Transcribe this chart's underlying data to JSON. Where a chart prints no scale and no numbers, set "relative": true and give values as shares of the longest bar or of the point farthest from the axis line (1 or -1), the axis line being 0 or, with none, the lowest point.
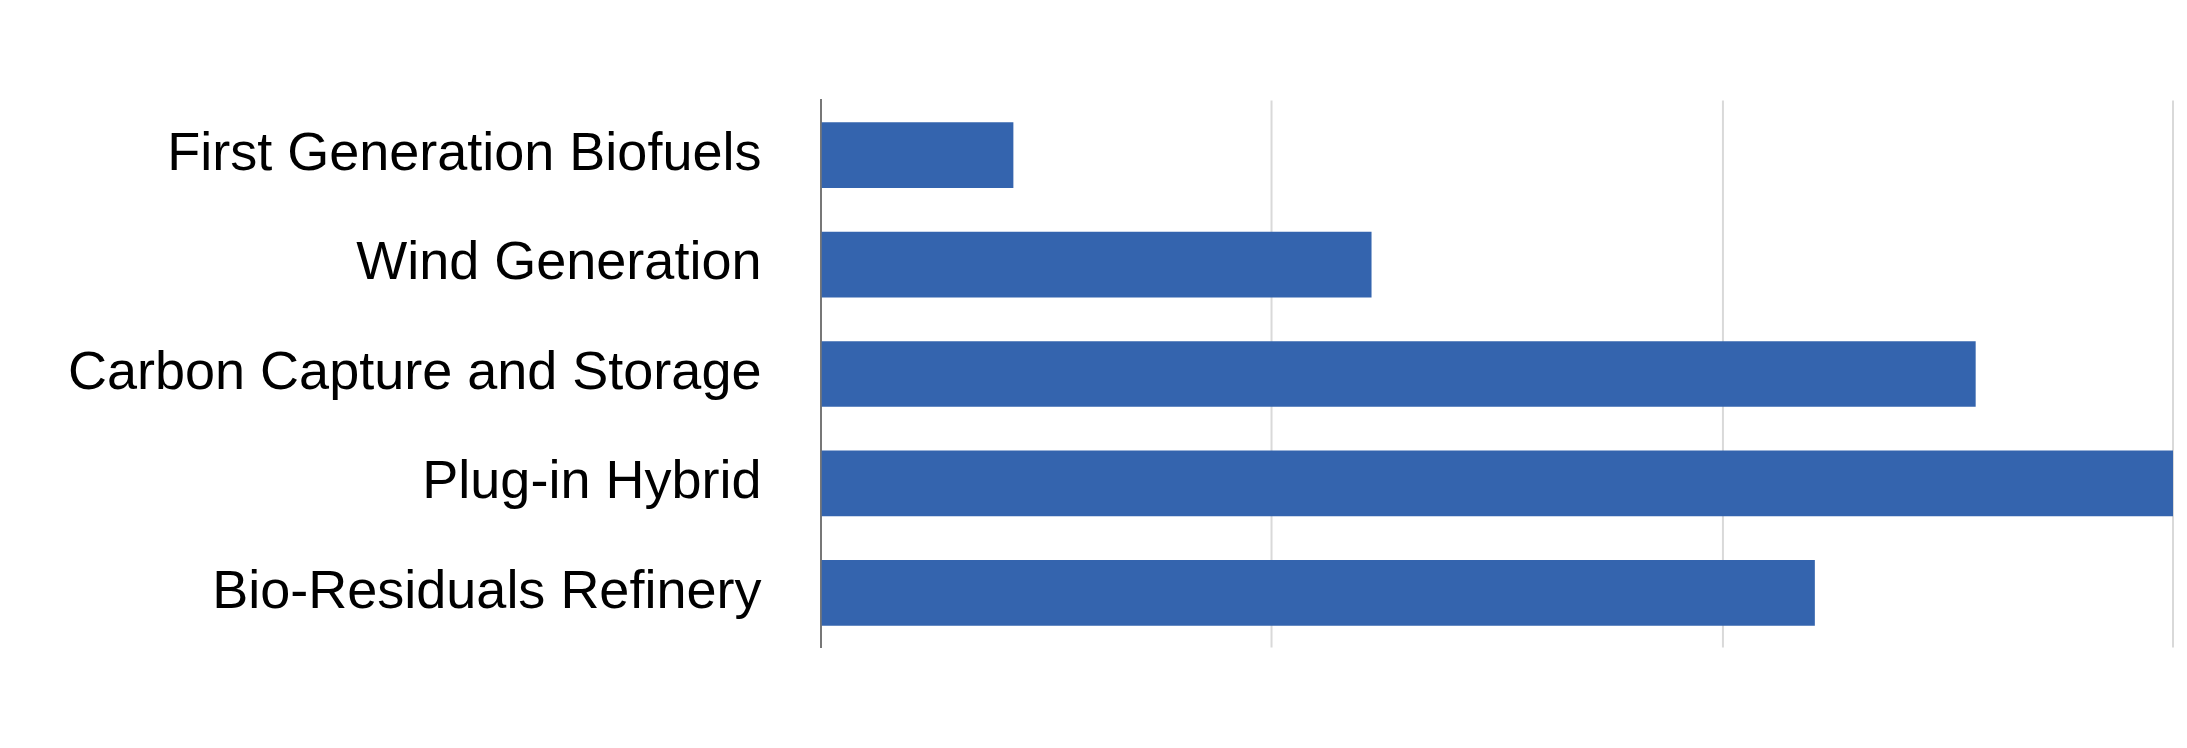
{
  "chart_data": {
    "type": "bar",
    "orientation": "horizontal",
    "relative": true,
    "categories": [
      "First Generation Biofuels",
      "Wind Generation",
      "Carbon Capture and Storage",
      "Plug-in Hybrid",
      "Bio-Residuals Refinery"
    ],
    "values": [
      0.142,
      0.407,
      0.854,
      1,
      0.735
    ],
    "color": "#3464ae",
    "ref_lines": [
      {
        "axis": "x",
        "value": 0.333,
        "color": "#d9d9d9"
      },
      {
        "axis": "x",
        "value": 0.667,
        "color": "#d9d9d9"
      },
      {
        "axis": "x",
        "value": 1,
        "color": "#d9d9d9"
      }
    ]
  }
}
